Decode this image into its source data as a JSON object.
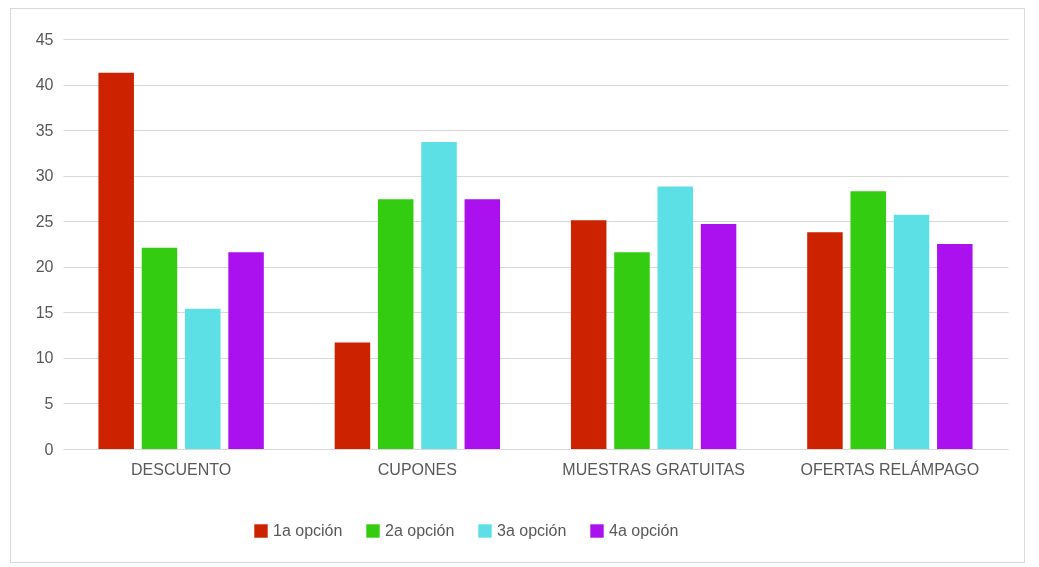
{
  "chart_data": {
    "type": "bar",
    "categories": [
      "DESCUENTO",
      "CUPONES",
      "MUESTRAS GRATUITAS",
      "OFERTAS RELÁMPAGO"
    ],
    "series": [
      {
        "name": "1a opción",
        "color": "#cc2200",
        "values": [
          41.3,
          11.7,
          25.1,
          23.8
        ]
      },
      {
        "name": "2a opción",
        "color": "#33cc11",
        "values": [
          22.1,
          27.4,
          21.6,
          28.3
        ]
      },
      {
        "name": "3a opción",
        "color": "#5ce0e6",
        "values": [
          15.4,
          33.7,
          28.8,
          25.7
        ]
      },
      {
        "name": "4a opción",
        "color": "#aa11ee",
        "values": [
          21.6,
          27.4,
          24.7,
          22.5
        ]
      }
    ],
    "ylim": [
      0,
      45
    ],
    "yticks": [
      0,
      5,
      10,
      15,
      20,
      25,
      30,
      35,
      40,
      45
    ],
    "grid": "y",
    "legend": "bottom"
  }
}
